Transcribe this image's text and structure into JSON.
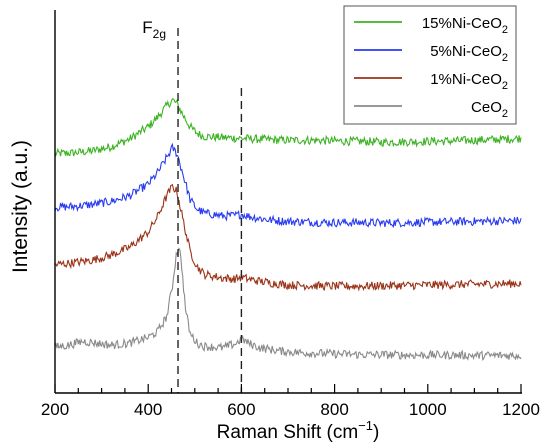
{
  "chart_data": {
    "type": "line",
    "xlabel": "Raman Shift (cm",
    "xlabel_sup": "−1",
    "xlabel_close": ")",
    "ylabel": "Intensity (a.u.)",
    "xlim": [
      200,
      1200
    ],
    "y_ticks_shown": false,
    "x_ticks": [
      {
        "value": 200,
        "label": "200"
      },
      {
        "value": 400,
        "label": "400"
      },
      {
        "value": 600,
        "label": "600"
      },
      {
        "value": 800,
        "label": "800"
      },
      {
        "value": 1000,
        "label": "1000"
      },
      {
        "value": 1200,
        "label": "1200"
      }
    ],
    "reference_lines": [
      464,
      600
    ],
    "annotation": {
      "text": "F",
      "sub": "2g",
      "x": 464
    },
    "legend_position": "top-right",
    "series": [
      {
        "name": "15%Ni-CeO",
        "name_sub": "2",
        "color": "#3db324",
        "points": [
          [
            200,
            0.625
          ],
          [
            240,
            0.627
          ],
          [
            280,
            0.632
          ],
          [
            320,
            0.643
          ],
          [
            360,
            0.663
          ],
          [
            400,
            0.695
          ],
          [
            420,
            0.72
          ],
          [
            440,
            0.75
          ],
          [
            452,
            0.765
          ],
          [
            462,
            0.755
          ],
          [
            475,
            0.725
          ],
          [
            490,
            0.695
          ],
          [
            505,
            0.678
          ],
          [
            520,
            0.67
          ],
          [
            560,
            0.667
          ],
          [
            600,
            0.665
          ],
          [
            650,
            0.662
          ],
          [
            700,
            0.66
          ],
          [
            760,
            0.66
          ],
          [
            800,
            0.658
          ],
          [
            860,
            0.657
          ],
          [
            900,
            0.655
          ],
          [
            960,
            0.656
          ],
          [
            1000,
            0.657
          ],
          [
            1050,
            0.658
          ],
          [
            1100,
            0.66
          ],
          [
            1150,
            0.662
          ],
          [
            1200,
            0.665
          ]
        ]
      },
      {
        "name": "5%Ni-CeO",
        "name_sub": "2",
        "color": "#2a3cf0",
        "points": [
          [
            200,
            0.485
          ],
          [
            240,
            0.487
          ],
          [
            280,
            0.492
          ],
          [
            320,
            0.5
          ],
          [
            360,
            0.515
          ],
          [
            400,
            0.545
          ],
          [
            420,
            0.575
          ],
          [
            440,
            0.615
          ],
          [
            452,
            0.64
          ],
          [
            462,
            0.625
          ],
          [
            475,
            0.57
          ],
          [
            490,
            0.505
          ],
          [
            505,
            0.48
          ],
          [
            520,
            0.47
          ],
          [
            560,
            0.462
          ],
          [
            585,
            0.463
          ],
          [
            600,
            0.467
          ],
          [
            620,
            0.46
          ],
          [
            660,
            0.452
          ],
          [
            700,
            0.448
          ],
          [
            760,
            0.446
          ],
          [
            800,
            0.445
          ],
          [
            860,
            0.445
          ],
          [
            900,
            0.444
          ],
          [
            960,
            0.445
          ],
          [
            1000,
            0.446
          ],
          [
            1050,
            0.447
          ],
          [
            1100,
            0.448
          ],
          [
            1150,
            0.449
          ],
          [
            1200,
            0.45
          ]
        ]
      },
      {
        "name": "1%Ni-CeO",
        "name_sub": "2",
        "color": "#9a3318",
        "points": [
          [
            200,
            0.335
          ],
          [
            240,
            0.34
          ],
          [
            280,
            0.347
          ],
          [
            320,
            0.36
          ],
          [
            360,
            0.38
          ],
          [
            400,
            0.42
          ],
          [
            420,
            0.46
          ],
          [
            440,
            0.515
          ],
          [
            452,
            0.54
          ],
          [
            462,
            0.525
          ],
          [
            475,
            0.45
          ],
          [
            490,
            0.37
          ],
          [
            505,
            0.33
          ],
          [
            520,
            0.31
          ],
          [
            560,
            0.3
          ],
          [
            585,
            0.298
          ],
          [
            600,
            0.302
          ],
          [
            620,
            0.296
          ],
          [
            660,
            0.288
          ],
          [
            700,
            0.282
          ],
          [
            760,
            0.28
          ],
          [
            800,
            0.279
          ],
          [
            860,
            0.279
          ],
          [
            900,
            0.28
          ],
          [
            960,
            0.281
          ],
          [
            1000,
            0.282
          ],
          [
            1050,
            0.283
          ],
          [
            1100,
            0.284
          ],
          [
            1150,
            0.285
          ],
          [
            1200,
            0.286
          ]
        ]
      },
      {
        "name": "CeO",
        "name_sub": "2",
        "color": "#8a8a8a",
        "points": [
          [
            200,
            0.12
          ],
          [
            230,
            0.125
          ],
          [
            260,
            0.135
          ],
          [
            290,
            0.13
          ],
          [
            320,
            0.125
          ],
          [
            360,
            0.13
          ],
          [
            400,
            0.145
          ],
          [
            420,
            0.16
          ],
          [
            440,
            0.2
          ],
          [
            452,
            0.28
          ],
          [
            460,
            0.36
          ],
          [
            466,
            0.385
          ],
          [
            472,
            0.33
          ],
          [
            480,
            0.22
          ],
          [
            490,
            0.155
          ],
          [
            505,
            0.13
          ],
          [
            520,
            0.122
          ],
          [
            560,
            0.118
          ],
          [
            590,
            0.13
          ],
          [
            600,
            0.142
          ],
          [
            615,
            0.13
          ],
          [
            640,
            0.118
          ],
          [
            680,
            0.11
          ],
          [
            720,
            0.106
          ],
          [
            760,
            0.104
          ],
          [
            800,
            0.102
          ],
          [
            860,
            0.1
          ],
          [
            900,
            0.1
          ],
          [
            960,
            0.099
          ],
          [
            1000,
            0.099
          ],
          [
            1050,
            0.099
          ],
          [
            1100,
            0.098
          ],
          [
            1150,
            0.098
          ],
          [
            1200,
            0.098
          ]
        ]
      }
    ]
  }
}
